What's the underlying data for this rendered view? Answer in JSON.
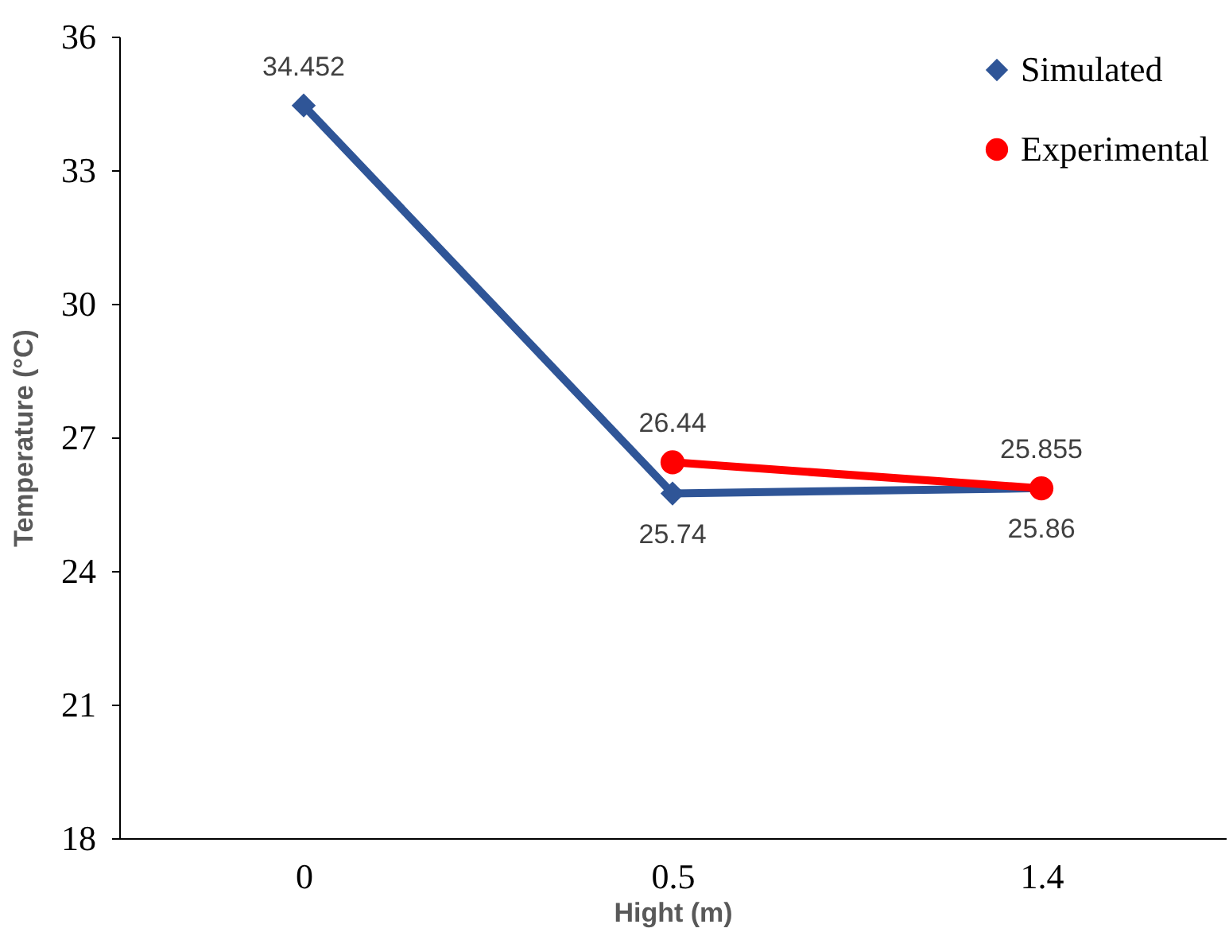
{
  "chart_data": {
    "type": "line",
    "xlabel": "Hight (m)",
    "ylabel": "Temperature (°C)",
    "categories": [
      "0",
      "0.5",
      "1.4"
    ],
    "series": [
      {
        "name": "Simulated",
        "color": "#2f5597",
        "marker": "diamond",
        "values": [
          34.452,
          25.74,
          25.86
        ]
      },
      {
        "name": "Experimental",
        "color": "#ff0000",
        "marker": "circle",
        "values": [
          null,
          26.44,
          25.855
        ]
      }
    ],
    "ylim": [
      18,
      36
    ],
    "yticks": [
      18,
      21,
      24,
      27,
      30,
      33,
      36
    ],
    "grid": false,
    "legend": "top right",
    "data_labels": true
  }
}
